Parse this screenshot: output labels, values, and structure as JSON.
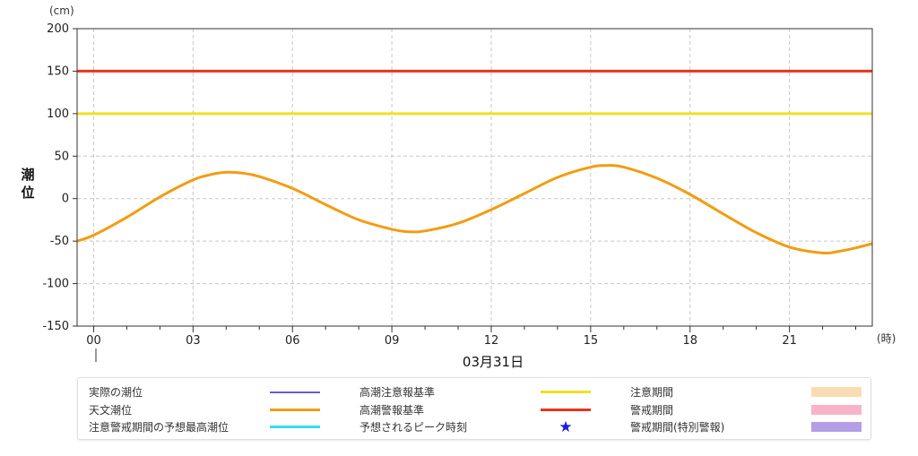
{
  "chart_data": {
    "type": "line",
    "ylabel": "潮位",
    "yunit": "(cm)",
    "xunit": "(時)",
    "date_label": "03月31日",
    "ylim": [
      -150,
      200
    ],
    "yticks": [
      200,
      150,
      100,
      50,
      0,
      -50,
      -100,
      -150
    ],
    "xlim": [
      -0.5,
      23.5
    ],
    "xticks": [
      "00",
      "03",
      "06",
      "09",
      "12",
      "15",
      "18",
      "21"
    ],
    "grid": true,
    "reference_lines": [
      {
        "name": "高潮警報基準",
        "value": 150,
        "color": "#e8341c"
      },
      {
        "name": "高潮注意報基準",
        "value": 100,
        "color": "#f0e020"
      }
    ],
    "series": [
      {
        "name": "天文潮位",
        "color": "#f39c12",
        "x": [
          -0.5,
          0,
          1,
          2,
          3,
          3.5,
          4,
          4.5,
          5,
          6,
          7,
          8,
          9,
          9.5,
          10,
          11,
          12,
          13,
          14,
          15,
          15.5,
          16,
          17,
          18,
          19,
          20,
          21,
          22,
          22.5,
          23,
          23.5
        ],
        "y": [
          -50,
          -43,
          -22,
          2,
          22,
          28,
          31,
          30,
          26,
          12,
          -7,
          -25,
          -36,
          -39,
          -38,
          -29,
          -13,
          6,
          25,
          37,
          39,
          37,
          24,
          5,
          -18,
          -40,
          -57,
          -64,
          -62,
          -58,
          -53
        ]
      }
    ]
  },
  "legend": {
    "items": [
      {
        "label": "実際の潮位",
        "kind": "line",
        "color": "#6a5acd"
      },
      {
        "label": "高潮注意報基準",
        "kind": "thick",
        "color": "#f0e020"
      },
      {
        "label": "注意期間",
        "kind": "box",
        "color": "#fadcb4"
      },
      {
        "label": "天文潮位",
        "kind": "thick",
        "color": "#f39c12"
      },
      {
        "label": "高潮警報基準",
        "kind": "thick",
        "color": "#e8341c"
      },
      {
        "label": "警戒期間",
        "kind": "box",
        "color": "#f9b3c8"
      },
      {
        "label": "注意警戒期間の予想最高潮位",
        "kind": "thick",
        "color": "#33e0e8"
      },
      {
        "label": "予想されるピーク時刻",
        "kind": "star",
        "color": "#1a1ae6",
        "symbol": "★"
      },
      {
        "label": "警戒期間(特別警報)",
        "kind": "box",
        "color": "#b49ee6"
      }
    ]
  }
}
